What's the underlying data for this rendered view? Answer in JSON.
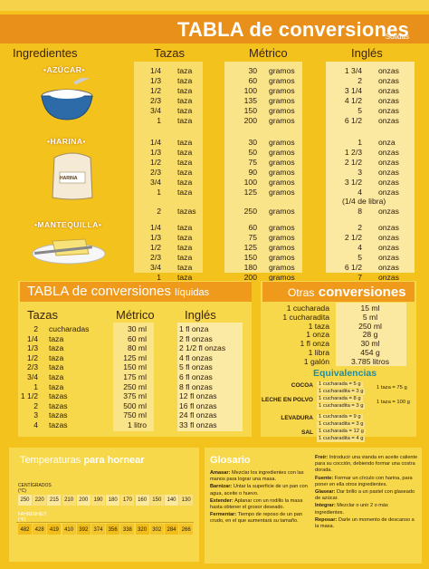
{
  "header": {
    "title": "TABLA de conversiones",
    "subtitle": "Sólidas"
  },
  "solid_cols": [
    "Ingredientes",
    "Tazas",
    "Métrico",
    "Inglés"
  ],
  "groups": [
    {
      "name": "•AZÚCAR•",
      "rows": [
        [
          "1/4",
          "taza",
          "30",
          "gramos",
          "1 3/4",
          "onzas"
        ],
        [
          "1/3",
          "taza",
          "60",
          "gramos",
          "2",
          "onzas"
        ],
        [
          "1/2",
          "taza",
          "100",
          "gramos",
          "3 1/4",
          "onzas"
        ],
        [
          "2/3",
          "taza",
          "135",
          "gramos",
          "4 1/2",
          "onzas"
        ],
        [
          "3/4",
          "taza",
          "150",
          "gramos",
          "5",
          "onzas"
        ],
        [
          "1",
          "taza",
          "200",
          "gramos",
          "6 1/2",
          "onzas"
        ]
      ]
    },
    {
      "name": "•HARINA•",
      "rows": [
        [
          "1/4",
          "taza",
          "30",
          "gramos",
          "1",
          "onza"
        ],
        [
          "1/3",
          "taza",
          "50",
          "gramos",
          "1 2/3",
          "onzas"
        ],
        [
          "1/2",
          "taza",
          "75",
          "gramos",
          "2 1/2",
          "onzas"
        ],
        [
          "2/3",
          "taza",
          "90",
          "gramos",
          "3",
          "onzas"
        ],
        [
          "3/4",
          "taza",
          "100",
          "gramos",
          "3 1/2",
          "onzas"
        ],
        [
          "1",
          "taza",
          "125",
          "gramos",
          "4",
          "onzas"
        ],
        [
          "",
          "",
          "",
          "",
          "(1/4 de libra)",
          ""
        ],
        [
          "2",
          "tazas",
          "250",
          "gramos",
          "8",
          "onzas"
        ]
      ]
    },
    {
      "name": "•MANTEQUILLA•",
      "rows": [
        [
          "1/4",
          "taza",
          "60",
          "gramos",
          "2",
          "onzas"
        ],
        [
          "1/3",
          "taza",
          "75",
          "gramos",
          "2 1/2",
          "onzas"
        ],
        [
          "1/2",
          "taza",
          "125",
          "gramos",
          "4",
          "onzas"
        ],
        [
          "2/3",
          "taza",
          "150",
          "gramos",
          "5",
          "onzas"
        ],
        [
          "3/4",
          "taza",
          "180",
          "gramos",
          "6 1/2",
          "onzas"
        ],
        [
          "1",
          "taza",
          "200",
          "gramos",
          "7",
          "onzas"
        ]
      ]
    }
  ],
  "harina_bag_label": "HARINA",
  "liquid": {
    "title": "TABLA de conversiones",
    "title_suffix": "líquidas",
    "cols": [
      "Tazas",
      "Métrico",
      "Inglés"
    ],
    "rows": [
      [
        "2",
        "cucharadas",
        "30 ml",
        "1 fl onza"
      ],
      [
        "1/4",
        "taza",
        "60 ml",
        "2 fl onzas"
      ],
      [
        "1/3",
        "taza",
        "80 ml",
        "2 1/2 fl onzas"
      ],
      [
        "1/2",
        "taza",
        "125 ml",
        "4 fl onzas"
      ],
      [
        "2/3",
        "taza",
        "150 ml",
        "5 fl onzas"
      ],
      [
        "3/4",
        "taza",
        "175 ml",
        "6 fl onzas"
      ],
      [
        "1",
        "taza",
        "250 ml",
        "8 fl onzas"
      ],
      [
        "1 1/2",
        "tazas",
        "375 ml",
        "12 fl onzas"
      ],
      [
        "2",
        "tazas",
        "500 ml",
        "16 fl onzas"
      ],
      [
        "3",
        "tazas",
        "750 ml",
        "24 fl onzas"
      ],
      [
        "4",
        "tazas",
        "1 litro",
        "33 fl onzas"
      ]
    ]
  },
  "otras": {
    "title_light": "Otras",
    "title_bold": "conversiones",
    "rows": [
      [
        "1 cucharada",
        "15 ml"
      ],
      [
        "1 cucharadita",
        "5 ml"
      ],
      [
        "1 taza",
        "250 ml"
      ],
      [
        "1 onza",
        "28 g"
      ],
      [
        "1 fl onza",
        "30 ml"
      ],
      [
        "1 libra",
        "454 g"
      ],
      [
        "1 galón",
        "3.785 litros"
      ]
    ]
  },
  "equivalencias": {
    "title": "Equivalencias",
    "items": [
      {
        "name": "COCOA",
        "lines": [
          "1 cucharada = 5 g",
          "1 cucharadita = 3 g",
          "1 taza = 75 g"
        ]
      },
      {
        "name": "LECHE EN POLVO",
        "lines": [
          "1 cucharada = 8 g",
          "1 cucharadita = 3 g",
          "1 taza = 100 g"
        ]
      },
      {
        "name": "LEVADURA",
        "lines": [
          "1 cucharada = 9 g",
          "1 cucharadita = 3 g"
        ]
      },
      {
        "name": "SAL",
        "lines": [
          "1 cucharada = 12 g",
          "1 cucharadita = 4 g"
        ]
      }
    ]
  },
  "temperaturas": {
    "title_light": "Temperaturas",
    "title_bold": "para hornear",
    "c_label": "CENTÍGRADOS (°C)",
    "f_label": "FAHRENHEIT (°F)",
    "celsius": [
      "250",
      "220",
      "215",
      "210",
      "200",
      "190",
      "180",
      "170",
      "160",
      "150",
      "140",
      "130"
    ],
    "fahrenheit": [
      "482",
      "428",
      "419",
      "410",
      "392",
      "374",
      "356",
      "338",
      "320",
      "302",
      "284",
      "266"
    ]
  },
  "glosario": {
    "title": "Glosario",
    "left": [
      [
        "Amasar:",
        "Mezclar los ingredientes con las manos para lograr una masa."
      ],
      [
        "Barnizar:",
        "Untar la superficie de un pan con agua, aceite o huevo."
      ],
      [
        "Extender:",
        "Aplanar con un rodillo la masa hasta obtener el grosor deseado."
      ],
      [
        "Fermentar:",
        "Tiempo de reposo de un pan crudo, en el que aumentará su tamaño."
      ]
    ],
    "right": [
      [
        "Freír:",
        "Introducir una vianda en aceite caliente para su cocción, debiendo formar una costra dorada."
      ],
      [
        "Fuente:",
        "Formar un círculo con harina, para poner en ella otros ingredientes."
      ],
      [
        "Glasear:",
        "Dar brillo a un pastel con glaseado de azúcar."
      ],
      [
        "Integrar:",
        "Mezclar o unir 2 o más ingredientes."
      ],
      [
        "Reposar:",
        "Darle un momento de descanso a la masa."
      ]
    ]
  }
}
